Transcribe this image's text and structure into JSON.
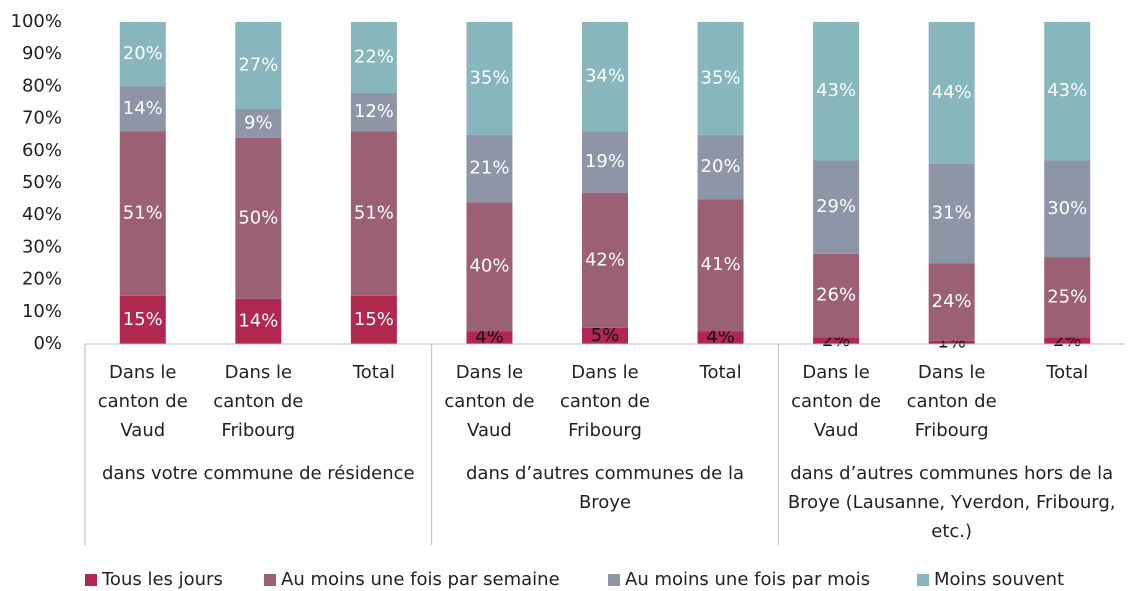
{
  "chart_data": {
    "type": "stacked_bar",
    "categories": [
      [
        "Dans le",
        "canton de",
        "Vaud"
      ],
      [
        "Dans le",
        "canton de",
        "Fribourg"
      ],
      [
        "Total"
      ],
      [
        "Dans le",
        "canton de",
        "Vaud"
      ],
      [
        "Dans le",
        "canton de",
        "Fribourg"
      ],
      [
        "Total"
      ],
      [
        "Dans le",
        "canton de",
        "Vaud"
      ],
      [
        "Dans le",
        "canton de",
        "Fribourg"
      ],
      [
        "Total"
      ]
    ],
    "groups": [
      [
        "dans votre commune de résidence"
      ],
      [
        "dans d’autres communes de la",
        "Broye"
      ],
      [
        "dans d’autres communes hors de la",
        "Broye (Lausanne, Yverdon, Fribourg,",
        "etc.)"
      ]
    ],
    "series": [
      {
        "name": "Tous les jours",
        "color": "#b0284f",
        "values": [
          15,
          14,
          15,
          4,
          5,
          4,
          2,
          1,
          2
        ],
        "value_labels": [
          "15%",
          "14%",
          "15%",
          "4%",
          "5%",
          "4%",
          "2%",
          "1%",
          "2%"
        ]
      },
      {
        "name": "Au moins une fois par semaine",
        "color": "#9c6075",
        "values": [
          51,
          50,
          51,
          40,
          42,
          41,
          26,
          24,
          25
        ],
        "value_labels": [
          "51%",
          "50%",
          "51%",
          "40%",
          "42%",
          "41%",
          "26%",
          "24%",
          "25%"
        ]
      },
      {
        "name": "Au moins une fois par mois",
        "color": "#8e95a6",
        "values": [
          14,
          9,
          12,
          21,
          19,
          20,
          29,
          31,
          30
        ],
        "value_labels": [
          "14%",
          "9%",
          "12%",
          "21%",
          "19%",
          "20%",
          "29%",
          "31%",
          "30%"
        ]
      },
      {
        "name": "Moins souvent",
        "color": "#87b6bc",
        "values": [
          20,
          27,
          22,
          35,
          34,
          35,
          43,
          44,
          43
        ],
        "value_labels": [
          "20%",
          "27%",
          "22%",
          "35%",
          "34%",
          "35%",
          "43%",
          "44%",
          "43%"
        ]
      }
    ],
    "ylim": [
      0,
      100
    ],
    "yticks": [
      {
        "value": 0,
        "label": "0%"
      },
      {
        "value": 10,
        "label": "10%"
      },
      {
        "value": 20,
        "label": "20%"
      },
      {
        "value": 30,
        "label": "30%"
      },
      {
        "value": 40,
        "label": "40%"
      },
      {
        "value": 50,
        "label": "50%"
      },
      {
        "value": 60,
        "label": "60%"
      },
      {
        "value": 70,
        "label": "70%"
      },
      {
        "value": 80,
        "label": "80%"
      },
      {
        "value": 90,
        "label": "90%"
      },
      {
        "value": 100,
        "label": "100%"
      }
    ],
    "legend": "bottom"
  }
}
